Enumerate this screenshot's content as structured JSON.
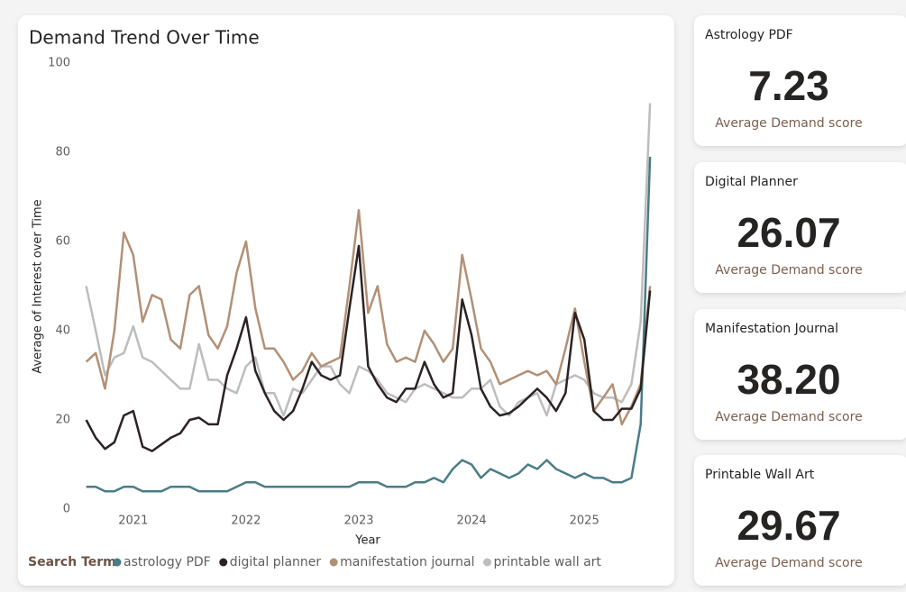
{
  "chart_data": {
    "type": "line",
    "title": "Demand Trend Over Time",
    "x_label": "Year",
    "y_label": "Average of Interest over Time",
    "legend_title": "Search Term",
    "x": [
      2020.583,
      2020.667,
      2020.75,
      2020.833,
      2020.917,
      2021,
      2021.083,
      2021.167,
      2021.25,
      2021.333,
      2021.417,
      2021.5,
      2021.583,
      2021.667,
      2021.75,
      2021.833,
      2021.917,
      2022,
      2022.083,
      2022.167,
      2022.25,
      2022.333,
      2022.417,
      2022.5,
      2022.583,
      2022.667,
      2022.75,
      2022.833,
      2022.917,
      2023,
      2023.083,
      2023.167,
      2023.25,
      2023.333,
      2023.417,
      2023.5,
      2023.583,
      2023.667,
      2023.75,
      2023.833,
      2023.917,
      2024,
      2024.083,
      2024.167,
      2024.25,
      2024.333,
      2024.417,
      2024.5,
      2024.583,
      2024.667,
      2024.75,
      2024.833,
      2024.917,
      2025,
      2025.083,
      2025.167,
      2025.25,
      2025.333,
      2025.417,
      2025.5,
      2025.583
    ],
    "xlim": [
      2020.33,
      2025.63
    ],
    "xticks": [
      2021,
      2022,
      2023,
      2024,
      2025
    ],
    "ylim": [
      0,
      100
    ],
    "yticks": [
      0,
      20,
      40,
      60,
      80,
      100
    ],
    "series": [
      {
        "name": "astrology PDF",
        "color": "#4a7c87",
        "values": [
          5,
          5,
          4,
          4,
          5,
          5,
          4,
          4,
          4,
          5,
          5,
          5,
          4,
          4,
          4,
          4,
          5,
          6,
          6,
          5,
          5,
          5,
          5,
          5,
          5,
          5,
          5,
          5,
          5,
          6,
          6,
          6,
          5,
          5,
          5,
          6,
          6,
          7,
          6,
          9,
          11,
          10,
          7,
          9,
          8,
          7,
          8,
          10,
          9,
          11,
          9,
          8,
          7,
          8,
          7,
          7,
          6,
          6,
          7,
          19,
          79
        ]
      },
      {
        "name": "digital planner",
        "color": "#2b2224",
        "values": [
          20,
          16,
          13.5,
          15,
          21,
          22,
          14,
          13,
          14.5,
          16,
          17,
          20,
          20.5,
          19,
          19,
          30,
          36,
          43,
          31,
          26,
          22,
          20,
          22,
          27,
          33,
          30,
          29,
          30,
          45,
          59,
          32,
          28,
          25,
          24,
          27,
          27,
          33,
          28,
          25,
          26,
          47,
          39,
          27,
          23,
          21,
          21.5,
          23,
          25,
          27,
          25,
          22,
          26,
          44,
          38,
          22,
          20,
          20,
          22.5,
          22.5,
          27,
          49
        ]
      },
      {
        "name": "manifestation journal",
        "color": "#b39075",
        "values": [
          33,
          35,
          27,
          40,
          62,
          57,
          42,
          48,
          47,
          38,
          36,
          48,
          50,
          39,
          36,
          41,
          53,
          60,
          45,
          36,
          36,
          33,
          29,
          31,
          35,
          32,
          33,
          34,
          50,
          67,
          44,
          50,
          37,
          33,
          34,
          33,
          40,
          37,
          33,
          36,
          57,
          47,
          36,
          33,
          28,
          29,
          30,
          31,
          30,
          31,
          28,
          36,
          45,
          33,
          22,
          25,
          28,
          19,
          23,
          28,
          50
        ]
      },
      {
        "name": "printable wall art",
        "color": "#bdbdbd",
        "values": [
          50,
          40,
          30,
          34,
          35,
          41,
          34,
          33,
          31,
          29,
          27,
          27,
          37,
          29,
          29,
          27,
          26,
          32,
          34,
          26,
          26,
          21,
          27,
          26,
          29,
          32,
          32,
          28,
          26,
          32,
          31,
          29,
          26,
          25,
          24,
          27,
          28,
          27,
          26,
          25,
          25,
          27,
          27,
          29,
          23,
          21,
          24,
          25,
          26,
          21,
          28,
          29,
          30,
          29,
          26,
          25,
          25,
          24,
          28,
          42,
          91
        ]
      }
    ]
  },
  "cards": [
    {
      "title": "Astrology PDF",
      "value": "7.23",
      "label": "Average Demand score"
    },
    {
      "title": "Digital Planner",
      "value": "26.07",
      "label": "Average Demand score"
    },
    {
      "title": "Manifestation Journal",
      "value": "38.20",
      "label": "Average Demand score"
    },
    {
      "title": "Printable Wall Art",
      "value": "29.67",
      "label": "Average Demand score"
    }
  ]
}
